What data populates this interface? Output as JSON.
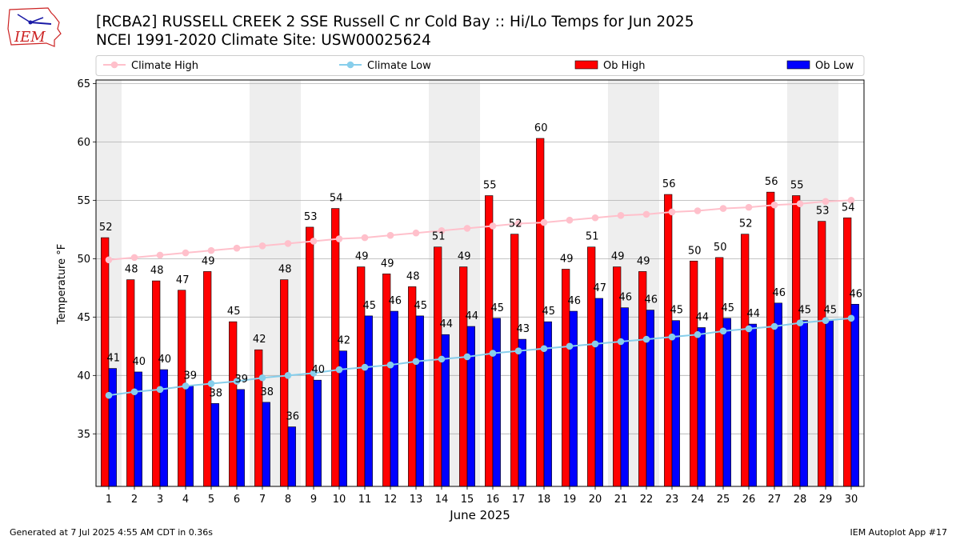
{
  "logo": {
    "name": "iem-logo",
    "text": "IEM"
  },
  "header": {
    "title_line1": "[RCBA2] RUSSELL CREEK 2 SSE Russell C nr Cold Bay :: Hi/Lo Temps for Jun 2025",
    "title_line2": "NCEI 1991-2020 Climate Site: USW00025624"
  },
  "footer": {
    "generated": "Generated at 7 Jul 2025 4:55 AM CDT in 0.36s",
    "app": "IEM Autoplot App #17"
  },
  "chart_data": {
    "type": "bar",
    "xlabel": "June 2025",
    "ylabel": "Temperature °F",
    "ylim": [
      30.5,
      65.3
    ],
    "yticks": [
      35,
      40,
      45,
      50,
      55,
      60,
      65
    ],
    "grid": true,
    "legend_position": "top",
    "categories": [
      1,
      2,
      3,
      4,
      5,
      6,
      7,
      8,
      9,
      10,
      11,
      12,
      13,
      14,
      15,
      16,
      17,
      18,
      19,
      20,
      21,
      22,
      23,
      24,
      25,
      26,
      27,
      28,
      29,
      30
    ],
    "weekend_shading": [
      [
        1,
        1
      ],
      [
        7,
        8
      ],
      [
        14,
        15
      ],
      [
        21,
        22
      ],
      [
        28,
        29
      ]
    ],
    "series": [
      {
        "name": "Ob High",
        "kind": "bar",
        "color": "#ff0000",
        "values": [
          51.8,
          48.2,
          48.1,
          47.3,
          48.9,
          44.6,
          42.2,
          48.2,
          52.7,
          54.3,
          49.3,
          48.7,
          47.6,
          51.0,
          49.3,
          55.4,
          52.1,
          60.3,
          49.1,
          51.0,
          49.3,
          48.9,
          55.5,
          49.8,
          50.1,
          52.1,
          55.7,
          55.4,
          53.2,
          53.5
        ],
        "labels": [
          52,
          48,
          48,
          47,
          49,
          45,
          42,
          48,
          53,
          54,
          49,
          49,
          48,
          51,
          49,
          55,
          52,
          60,
          49,
          51,
          49,
          49,
          56,
          50,
          50,
          52,
          56,
          55,
          53,
          54
        ]
      },
      {
        "name": "Ob Low",
        "kind": "bar",
        "color": "#0000ff",
        "values": [
          40.6,
          40.3,
          40.5,
          39.1,
          37.6,
          38.8,
          37.7,
          35.6,
          39.6,
          42.1,
          45.1,
          45.5,
          45.1,
          43.5,
          44.2,
          44.9,
          43.1,
          44.6,
          45.5,
          46.6,
          45.8,
          45.6,
          44.7,
          44.1,
          44.9,
          44.4,
          46.2,
          44.7,
          44.7,
          46.1
        ],
        "labels": [
          41,
          40,
          40,
          39,
          38,
          39,
          38,
          36,
          40,
          42,
          45,
          46,
          45,
          44,
          44,
          45,
          43,
          45,
          46,
          47,
          46,
          46,
          45,
          44,
          45,
          44,
          46,
          45,
          45,
          46
        ]
      },
      {
        "name": "Climate High",
        "kind": "line",
        "color": "#ffc0cb",
        "values": [
          49.9,
          50.1,
          50.3,
          50.5,
          50.7,
          50.9,
          51.1,
          51.3,
          51.5,
          51.7,
          51.8,
          52.0,
          52.2,
          52.4,
          52.6,
          52.8,
          53.0,
          53.1,
          53.3,
          53.5,
          53.7,
          53.8,
          54.0,
          54.1,
          54.3,
          54.4,
          54.6,
          54.7,
          54.9,
          55.0
        ]
      },
      {
        "name": "Climate Low",
        "kind": "line",
        "color": "#87ceeb",
        "values": [
          38.3,
          38.6,
          38.8,
          39.1,
          39.3,
          39.5,
          39.8,
          40.0,
          40.2,
          40.5,
          40.7,
          40.9,
          41.2,
          41.4,
          41.6,
          41.9,
          42.1,
          42.3,
          42.5,
          42.7,
          42.9,
          43.1,
          43.3,
          43.5,
          43.8,
          44.0,
          44.2,
          44.5,
          44.7,
          44.9
        ]
      }
    ]
  }
}
